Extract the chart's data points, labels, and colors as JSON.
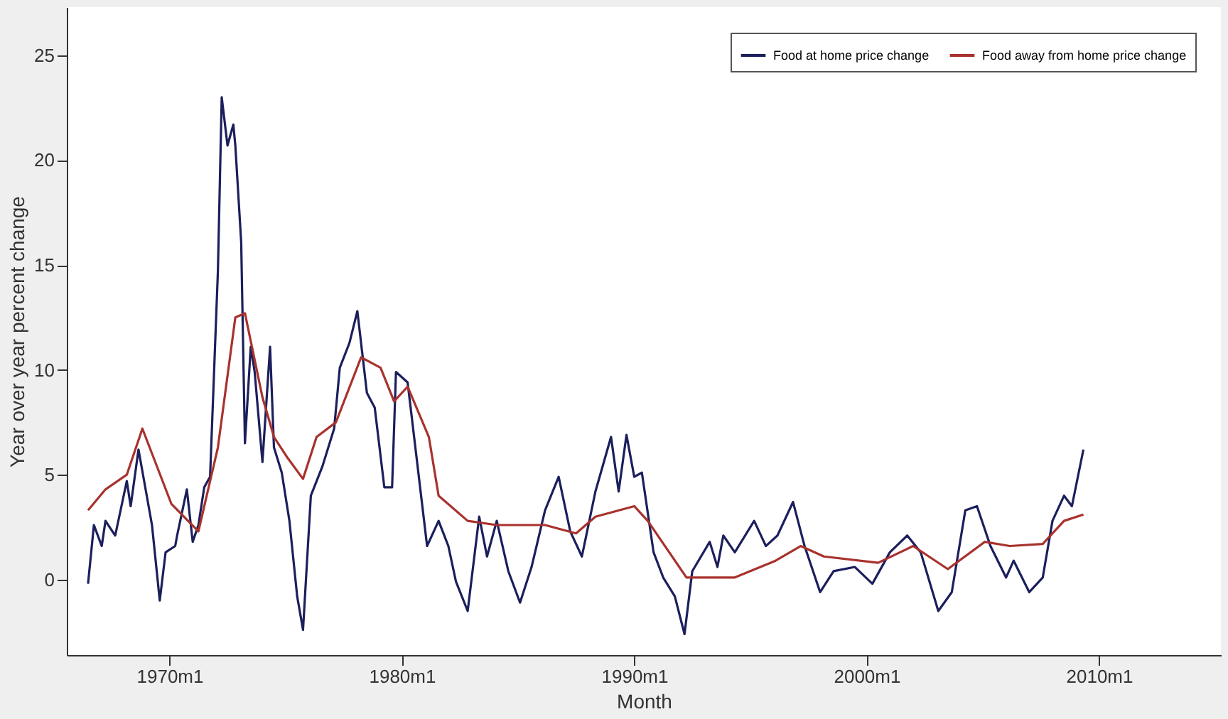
{
  "chart_data": {
    "type": "line",
    "xlabel": "Month",
    "ylabel": "Year over year percent change",
    "xlim": [
      "1965-08",
      "2015-04"
    ],
    "ylim": [
      -3.6,
      27.3
    ],
    "xticks": [
      {
        "value": "1970-01",
        "label": "1970m1"
      },
      {
        "value": "1980-01",
        "label": "1980m1"
      },
      {
        "value": "1990-01",
        "label": "1990m1"
      },
      {
        "value": "2000-01",
        "label": "2000m1"
      },
      {
        "value": "2010-01",
        "label": "2010m1"
      }
    ],
    "yticks": [
      0,
      5,
      10,
      15,
      20,
      25
    ],
    "legend": "top right",
    "grid": false,
    "marker": "none",
    "line_style": "solid",
    "series": [
      {
        "name": "Food at home price change",
        "color": "#1c1f5c",
        "x": [
          "1966-07",
          "1966-10",
          "1967-02",
          "1967-04",
          "1967-09",
          "1968-03",
          "1968-05",
          "1968-09",
          "1969-04",
          "1969-08",
          "1969-11",
          "1970-04",
          "1970-05",
          "1970-10",
          "1971-01",
          "1971-04",
          "1971-07",
          "1971-10",
          "1972-02",
          "1972-04",
          "1972-07",
          "1972-10",
          "1972-11",
          "1973-02",
          "1973-04",
          "1973-07",
          "1973-09",
          "1974-01",
          "1974-05",
          "1974-07",
          "1974-11",
          "1975-03",
          "1975-07",
          "1975-10",
          "1976-02",
          "1976-08",
          "1977-02",
          "1977-05",
          "1977-10",
          "1978-02",
          "1978-07",
          "1978-11",
          "1979-04",
          "1979-08",
          "1979-10",
          "1980-04",
          "1981-02",
          "1981-08",
          "1982-01",
          "1982-05",
          "1982-11",
          "1983-05",
          "1983-09",
          "1984-02",
          "1984-08",
          "1985-02",
          "1985-08",
          "1986-03",
          "1986-10",
          "1987-04",
          "1987-10",
          "1988-05",
          "1989-01",
          "1989-05",
          "1989-09",
          "1990-01",
          "1990-05",
          "1990-11",
          "1991-04",
          "1991-10",
          "1992-03",
          "1992-07",
          "1993-04",
          "1993-08",
          "1993-11",
          "1994-05",
          "1995-03",
          "1995-09",
          "1996-03",
          "1996-11",
          "1997-05",
          "1998-01",
          "1998-08",
          "1999-07",
          "2000-04",
          "2001-01",
          "2001-10",
          "2002-05",
          "2003-02",
          "2003-09",
          "2004-04",
          "2004-10",
          "2005-05",
          "2006-01",
          "2006-05",
          "2007-01",
          "2007-08",
          "2008-01",
          "2008-07",
          "2008-11",
          "2009-05"
        ],
        "values": [
          -0.2,
          2.6,
          1.6,
          2.8,
          2.1,
          4.7,
          3.5,
          6.2,
          2.6,
          -1.0,
          1.3,
          1.6,
          2.1,
          4.3,
          1.8,
          2.6,
          4.4,
          4.9,
          14.7,
          23.0,
          20.7,
          21.7,
          20.7,
          16.1,
          6.5,
          11.1,
          9.9,
          5.6,
          11.1,
          6.3,
          5.1,
          2.8,
          -0.8,
          -2.4,
          4.0,
          5.4,
          7.2,
          10.1,
          11.3,
          12.8,
          8.9,
          8.2,
          4.4,
          4.4,
          9.9,
          9.4,
          1.6,
          2.8,
          1.6,
          -0.1,
          -1.5,
          3.0,
          1.1,
          2.8,
          0.4,
          -1.1,
          0.6,
          3.3,
          4.9,
          2.3,
          1.1,
          4.2,
          6.8,
          4.2,
          6.9,
          4.9,
          5.1,
          1.3,
          0.1,
          -0.8,
          -2.6,
          0.4,
          1.8,
          0.6,
          2.1,
          1.3,
          2.8,
          1.6,
          2.1,
          3.7,
          1.6,
          -0.6,
          0.4,
          0.6,
          -0.2,
          1.3,
          2.1,
          1.3,
          -1.5,
          -0.6,
          3.3,
          3.5,
          1.6,
          0.1,
          0.9,
          -0.6,
          0.1,
          2.8,
          4.0,
          3.5,
          6.2
        ]
      },
      {
        "name": "Food away from home price change",
        "color": "#a8322d",
        "x": [
          "1966-07",
          "1967-04",
          "1968-03",
          "1968-11",
          "1970-02",
          "1971-04",
          "1972-02",
          "1972-11",
          "1973-04",
          "1974-01",
          "1974-07",
          "1975-02",
          "1975-10",
          "1976-05",
          "1977-03",
          "1978-04",
          "1979-02",
          "1979-09",
          "1980-04",
          "1981-03",
          "1981-08",
          "1982-11",
          "1984-02",
          "1986-03",
          "1987-07",
          "1988-05",
          "1990-01",
          "1990-08",
          "1992-04",
          "1994-05",
          "1996-02",
          "1997-03",
          "1998-03",
          "2000-07",
          "2002-01",
          "2003-07",
          "2005-02",
          "2006-03",
          "2007-08",
          "2008-07",
          "2009-05"
        ],
        "values": [
          3.3,
          4.3,
          5.0,
          7.2,
          3.6,
          2.3,
          6.3,
          12.5,
          12.7,
          8.7,
          6.8,
          5.8,
          4.8,
          6.8,
          7.5,
          10.6,
          10.1,
          8.5,
          9.2,
          6.8,
          4.0,
          2.8,
          2.6,
          2.6,
          2.2,
          3.0,
          3.5,
          2.8,
          0.1,
          0.1,
          0.9,
          1.6,
          1.1,
          0.8,
          1.6,
          0.5,
          1.8,
          1.6,
          1.7,
          2.8,
          3.1
        ]
      }
    ]
  }
}
